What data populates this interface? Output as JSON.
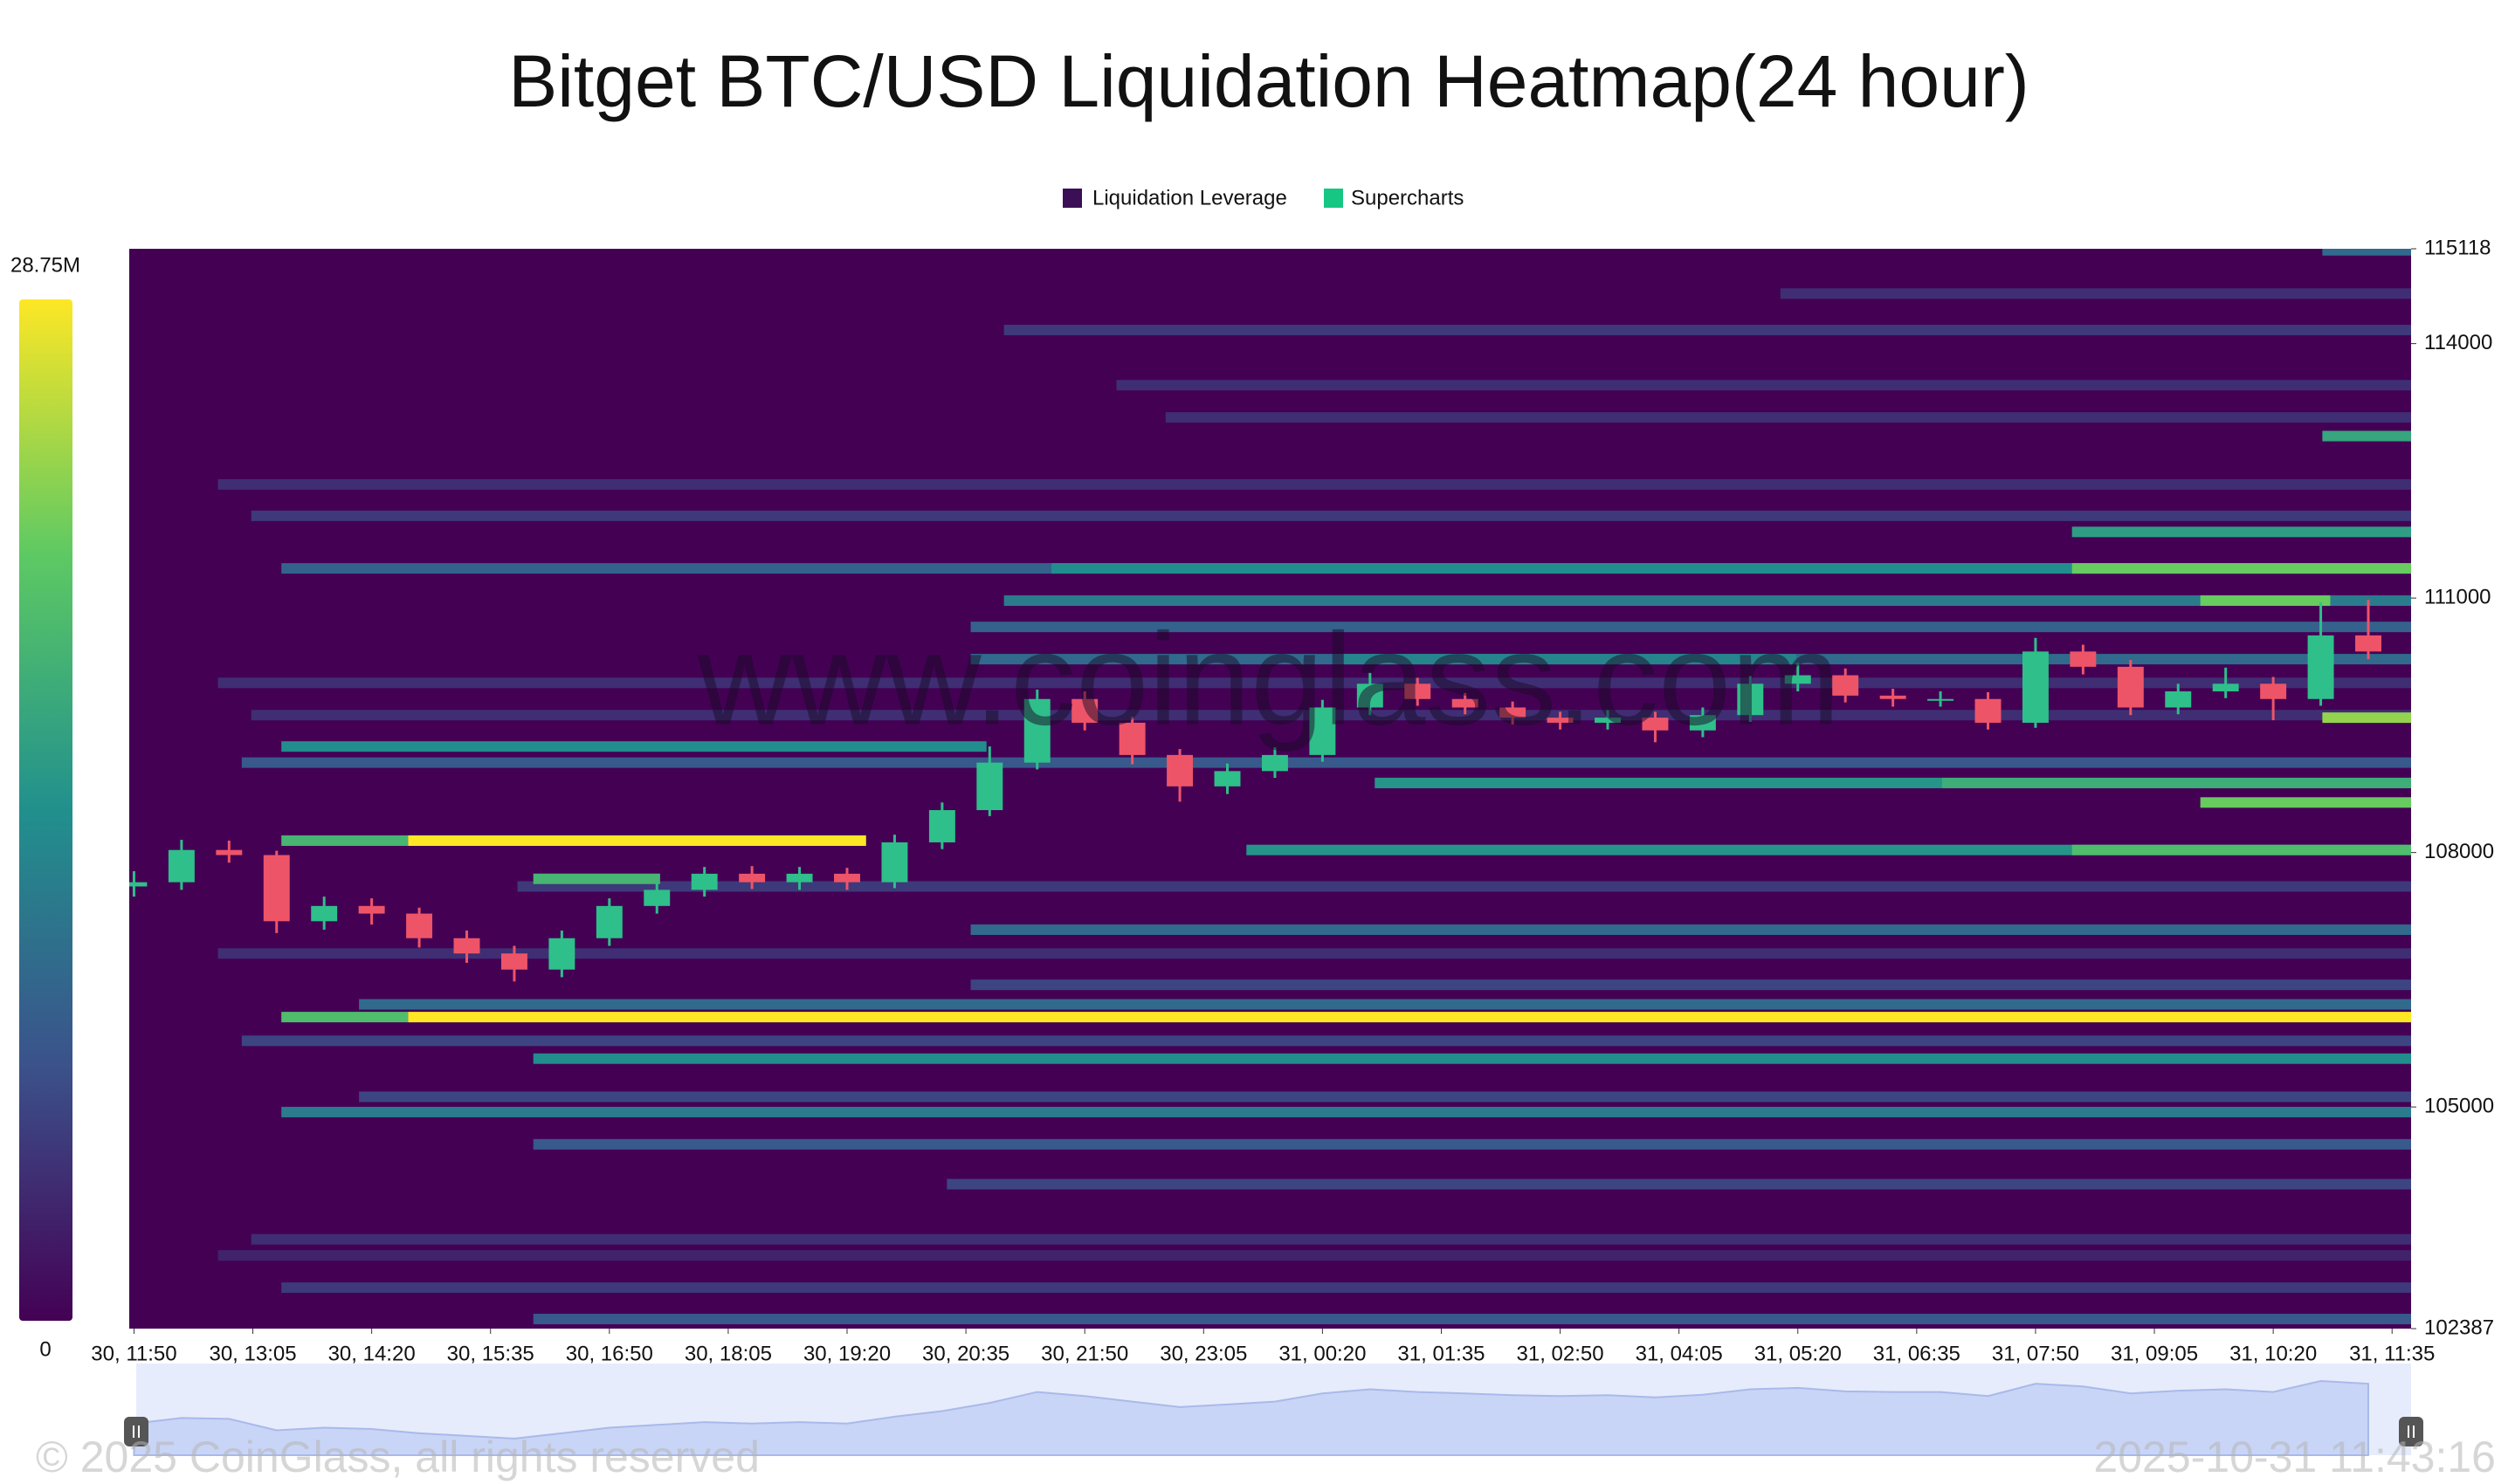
{
  "chart_data": {
    "type": "heatmap",
    "title": "Bitget BTC/USD Liquidation Heatmap(24 hour)",
    "legend": [
      {
        "name": "Liquidation Leverage",
        "color": "#3b0f55"
      },
      {
        "name": "Supercharts",
        "color": "#16c784"
      }
    ],
    "watermark": "www.coinglass.com",
    "copyright": "© 2025 CoinGlass, all rights reserved",
    "timestamp": "2025-10-31 11:43:16",
    "xlim": [
      -3,
      1437
    ],
    "xticks": [
      {
        "value": 0,
        "label": "30, 11:50"
      },
      {
        "value": 75,
        "label": "30, 13:05"
      },
      {
        "value": 150,
        "label": "30, 14:20"
      },
      {
        "value": 225,
        "label": "30, 15:35"
      },
      {
        "value": 300,
        "label": "30, 16:50"
      },
      {
        "value": 375,
        "label": "30, 18:05"
      },
      {
        "value": 450,
        "label": "30, 19:20"
      },
      {
        "value": 525,
        "label": "30, 20:35"
      },
      {
        "value": 600,
        "label": "30, 21:50"
      },
      {
        "value": 675,
        "label": "30, 23:05"
      },
      {
        "value": 750,
        "label": "31, 00:20"
      },
      {
        "value": 825,
        "label": "31, 01:35"
      },
      {
        "value": 900,
        "label": "31, 02:50"
      },
      {
        "value": 975,
        "label": "31, 04:05"
      },
      {
        "value": 1050,
        "label": "31, 05:20"
      },
      {
        "value": 1125,
        "label": "31, 06:35"
      },
      {
        "value": 1200,
        "label": "31, 07:50"
      },
      {
        "value": 1275,
        "label": "31, 09:05"
      },
      {
        "value": 1350,
        "label": "31, 10:20"
      },
      {
        "value": 1425,
        "label": "31, 11:35"
      }
    ],
    "ylim": [
      102387,
      115118
    ],
    "yticks": [
      102387,
      105000,
      108000,
      111000,
      114000,
      115118
    ],
    "zlim": [
      0,
      28.75
    ],
    "zticks": [
      0,
      {
        "value": 28.75,
        "label": "28.75M"
      }
    ],
    "colormap": [
      "#440154",
      "#3b528b",
      "#21908d",
      "#5dc963",
      "#fde725"
    ],
    "bands": {
      "y": [
        112340,
        111970,
        114160,
        113510,
        113130,
        114590,
        103440,
        103250,
        102870,
        106810,
        107600,
        110000,
        109620,
        106440,
        105780,
        105120,
        104090,
        102500,
        104560,
        109060,
        110660,
        107090,
        106210,
        115100,
        104940,
        110280,
        110280,
        110970,
        111350,
        111350,
        109250,
        105570,
        108820,
        108820,
        108030,
        108030,
        111780,
        112910,
        111350,
        110970,
        108590,
        109590,
        107690,
        108140,
        108140,
        106060,
        106060
      ],
      "x_start": [
        53,
        74,
        549,
        620,
        651,
        1039,
        74,
        53,
        93,
        53,
        242,
        53,
        74,
        528,
        68,
        142,
        513,
        252,
        252,
        68,
        528,
        528,
        142,
        1381,
        93,
        528,
        763,
        549,
        93,
        579,
        93,
        252,
        783,
        1141,
        702,
        1223,
        1223,
        1381,
        1223,
        1304,
        1304,
        1381,
        252,
        93,
        173,
        93,
        173
      ],
      "x_end": [
        1437,
        1437,
        1437,
        1437,
        1437,
        1437,
        1437,
        1437,
        1437,
        1437,
        1437,
        1437,
        1437,
        1437,
        1437,
        1437,
        1437,
        1437,
        1437,
        1437,
        1437,
        1437,
        1437,
        1437,
        1437,
        1437,
        1049,
        1437,
        1437,
        1437,
        538,
        1437,
        1437,
        1437,
        1437,
        1437,
        1437,
        1437,
        1437,
        1386,
        1437,
        1437,
        332,
        173,
        462,
        173,
        1437
      ],
      "values": [
        4,
        5,
        5,
        4,
        4,
        4,
        4,
        3,
        5,
        4,
        5,
        4,
        4,
        6,
        6,
        6,
        6,
        8,
        8,
        8,
        9,
        10,
        10,
        10,
        12,
        10,
        13,
        12,
        9,
        14,
        14,
        14,
        15,
        18,
        15,
        20,
        16,
        17,
        22,
        22,
        22,
        24,
        19,
        19,
        28.75,
        20,
        28.75
      ]
    },
    "candles": {
      "up_color": "#2fbf8a",
      "down_color": "#ee5468",
      "x": [
        0,
        30,
        60,
        90,
        120,
        150,
        180,
        210,
        240,
        270,
        300,
        330,
        360,
        390,
        420,
        450,
        480,
        510,
        540,
        570,
        600,
        630,
        660,
        690,
        720,
        750,
        780,
        810,
        840,
        870,
        900,
        930,
        960,
        990,
        1020,
        1050,
        1080,
        1110,
        1140,
        1170,
        1200,
        1230,
        1260,
        1290,
        1320,
        1350,
        1380,
        1410
      ],
      "open": [
        107600,
        107650,
        108030,
        107970,
        107190,
        107370,
        107280,
        106990,
        106810,
        106620,
        106990,
        107370,
        107560,
        107750,
        107650,
        107750,
        107650,
        108120,
        108500,
        109060,
        109810,
        109530,
        109150,
        108780,
        108960,
        109150,
        109710,
        109990,
        109810,
        109710,
        109590,
        109530,
        109590,
        109440,
        109620,
        109990,
        110090,
        109850,
        109810,
        109810,
        109530,
        110370,
        110190,
        109710,
        109900,
        109990,
        109810,
        110560
      ],
      "high": [
        107780,
        108150,
        108140,
        108020,
        107480,
        107460,
        107350,
        107080,
        106900,
        107080,
        107460,
        107650,
        107830,
        107840,
        107830,
        107820,
        108210,
        108590,
        109250,
        109920,
        109900,
        109600,
        109220,
        109050,
        109240,
        109800,
        110120,
        110060,
        109880,
        109780,
        109660,
        109680,
        109660,
        109710,
        110080,
        110240,
        110170,
        109930,
        109900,
        109890,
        110530,
        110450,
        110270,
        109990,
        110180,
        110070,
        110950,
        110980
      ],
      "low": [
        107480,
        107560,
        107880,
        107050,
        107090,
        107150,
        106880,
        106700,
        106480,
        106530,
        106900,
        107280,
        107480,
        107570,
        107560,
        107560,
        107580,
        108040,
        108430,
        108980,
        109440,
        109040,
        108600,
        108690,
        108880,
        109070,
        109620,
        109730,
        109630,
        109510,
        109450,
        109450,
        109300,
        109360,
        109540,
        109900,
        109770,
        109720,
        109720,
        109450,
        109470,
        110100,
        109620,
        109630,
        109820,
        109560,
        109730,
        110280
      ],
      "close": [
        107650,
        108030,
        107970,
        107190,
        107370,
        107280,
        106990,
        106810,
        106620,
        106990,
        107370,
        107560,
        107750,
        107650,
        107750,
        107650,
        108120,
        108500,
        109060,
        109810,
        109530,
        109150,
        108780,
        108960,
        109150,
        109710,
        109990,
        109810,
        109710,
        109590,
        109530,
        109590,
        109440,
        109620,
        109990,
        110090,
        109850,
        109810,
        109810,
        109530,
        110370,
        110190,
        109710,
        109900,
        109990,
        109810,
        110560,
        110370
      ]
    }
  }
}
